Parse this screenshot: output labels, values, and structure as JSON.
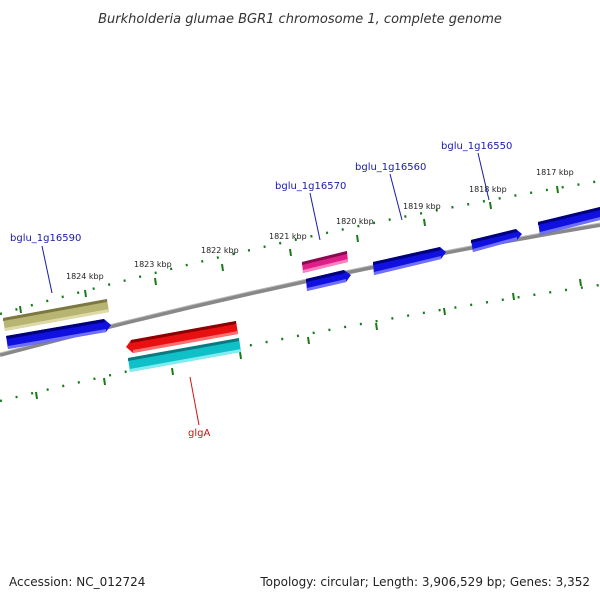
{
  "title": "Burkholderia glumae BGR1 chromosome 1, complete genome",
  "footer": {
    "accession": "Accession: NC_012724",
    "summary": "Topology: circular; Length: 3,906,529 bp; Genes: 3,352"
  },
  "ticks": [
    "1824 kbp",
    "1823 kbp",
    "1822 kbp",
    "1821 kbp",
    "1820 kbp",
    "1819 kbp",
    "1818 kbp",
    "1817 kbp"
  ],
  "gene_labels": {
    "bglu_1g16590": "bglu_1g16590",
    "bglu_1g16570": "bglu_1g16570",
    "bglu_1g16560": "bglu_1g16560",
    "bglu_1g16550": "bglu_1g16550",
    "glgA": "glgA"
  },
  "colors": {
    "cds_blue": "#1010e0",
    "olive": "#b0ac68",
    "pink": "#e0208a",
    "red": "#e81010",
    "cyan": "#10c0c8",
    "backbone": "#888888",
    "dots": "#1a7a1a",
    "label_blue": "#1a1aa8",
    "label_red": "#cc1111"
  }
}
